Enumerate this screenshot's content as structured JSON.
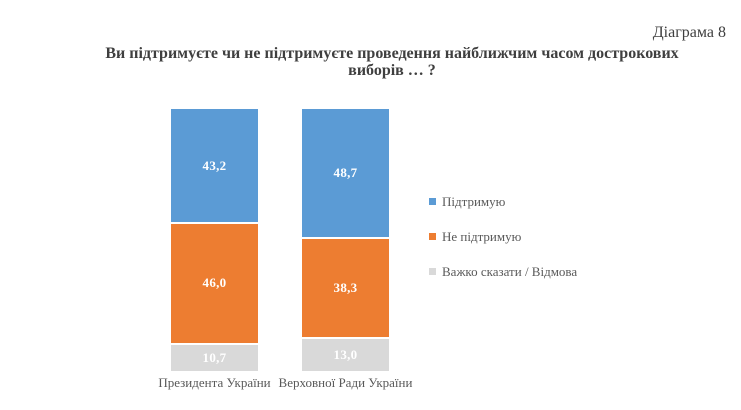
{
  "header": {
    "diagram_label": "Діаграма 8"
  },
  "title": {
    "line1": "Ви підтримуєте чи не підтримуєте проведення найближчим часом дострокових",
    "line2": "виборів … ?"
  },
  "chart_data": {
    "type": "bar",
    "variant": "stacked-column",
    "title": "Ви підтримуєте чи не підтримуєте проведення найближчим часом дострокових виборів … ?",
    "categories": [
      "Президента України",
      "Верховної Ради України"
    ],
    "series": [
      {
        "name": "Підтримую",
        "color": "#5B9BD5",
        "values": [
          43.2,
          48.7
        ],
        "labels": [
          "43,2",
          "48,7"
        ]
      },
      {
        "name": "Не підтримую",
        "color": "#ED7D31",
        "values": [
          46.0,
          38.3
        ],
        "labels": [
          "46,0",
          "38,3"
        ]
      },
      {
        "name": "Важко сказати / Відмова",
        "color": "#D9D9D9",
        "values": [
          10.7,
          13.0
        ],
        "labels": [
          "10,7",
          "13,0"
        ]
      }
    ],
    "ylim": [
      0,
      100
    ],
    "grid": false,
    "axes_visible": false,
    "legend_position": "right",
    "value_label_color": "#FFFFFF",
    "text_color": "#595959"
  }
}
